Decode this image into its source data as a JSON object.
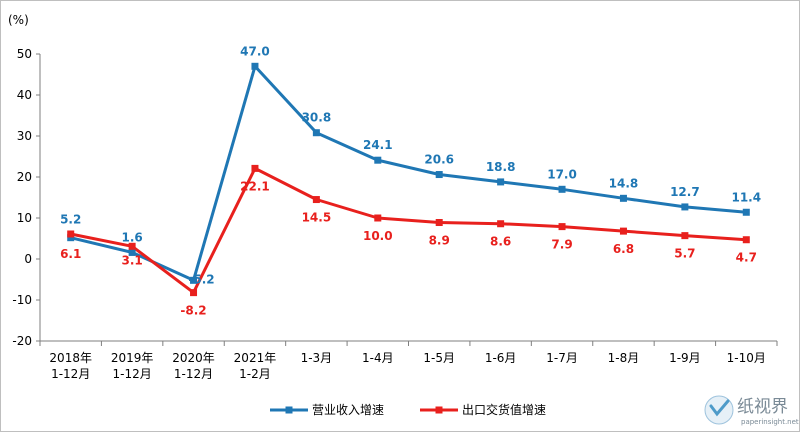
{
  "chart_data": {
    "type": "line",
    "unit_label": "(%)",
    "categories": [
      [
        "2018年",
        "1-12月"
      ],
      [
        "2019年",
        "1-12月"
      ],
      [
        "2020年",
        "1-12月"
      ],
      [
        "2021年",
        "1-2月"
      ],
      [
        "1-3月"
      ],
      [
        "1-4月"
      ],
      [
        "1-5月"
      ],
      [
        "1-6月"
      ],
      [
        "1-7月"
      ],
      [
        "1-8月"
      ],
      [
        "1-9月"
      ],
      [
        "1-10月"
      ]
    ],
    "ylim": [
      -20,
      50
    ],
    "yticks": [
      -20,
      -10,
      0,
      10,
      20,
      30,
      40,
      50
    ],
    "grid": false,
    "legend_position": "bottom",
    "series": [
      {
        "name": "营业收入增速",
        "color": "#1f77b4",
        "values": [
          5.2,
          1.6,
          -5.2,
          47.0,
          30.8,
          24.1,
          20.6,
          18.8,
          17.0,
          14.8,
          12.7,
          11.4
        ],
        "labels": [
          "5.2",
          "1.6",
          "-5.2",
          "47.0",
          "30.8",
          "24.1",
          "20.6",
          "18.8",
          "17.0",
          "14.8",
          "12.7",
          "11.4"
        ]
      },
      {
        "name": "出口交货值增速",
        "color": "#e8201d",
        "values": [
          6.1,
          3.1,
          -8.2,
          22.1,
          14.5,
          10.0,
          8.9,
          8.6,
          7.9,
          6.8,
          5.7,
          4.7
        ],
        "labels": [
          "6.1",
          "3.1",
          "-8.2",
          "22.1",
          "14.5",
          "10.0",
          "8.9",
          "8.6",
          "7.9",
          "6.8",
          "5.7",
          "4.7"
        ]
      }
    ]
  },
  "watermark": {
    "logo_text": "纸视界",
    "url_text": "paperinsight.net"
  }
}
